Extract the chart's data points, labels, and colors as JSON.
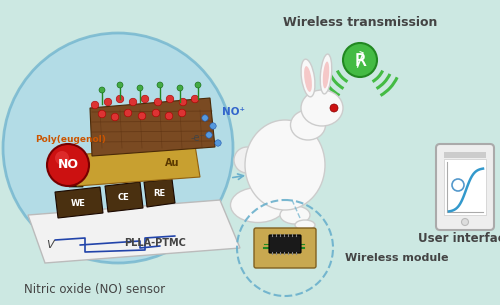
{
  "bg_color": "#cce8e2",
  "label_no_sensor": "Nitric oxide (NO) sensor",
  "label_wireless_tx": "Wireless transmission",
  "label_wireless_mod": "Wireless module",
  "label_user_interface": "User interface",
  "label_poly": "Poly(eugenol)",
  "label_no": "NO",
  "label_no_plus": "NO⁺",
  "label_plla": "PLLA-PTMC",
  "label_au": "Au",
  "label_we": "WE",
  "label_ce": "CE",
  "label_re": "RE",
  "label_v": "V",
  "label_electrons": "-e⁻",
  "sensor_circle_color": "#aad8e8",
  "sensor_circle_edge": "#6ab0cc",
  "text_color": "#444444",
  "bluetooth_color": "#44bb44",
  "no_ball_color": "#cc1111",
  "no_dots_red": "#dd3333",
  "no_dots_blue": "#5599dd",
  "electrode_color": "#4a3010",
  "au_color": "#c8a030",
  "mesh_color": "#7a4a22",
  "circuit_color": "#2244aa",
  "green_wifi_color": "#44bb44",
  "substrate_color": "#f2f2f2"
}
